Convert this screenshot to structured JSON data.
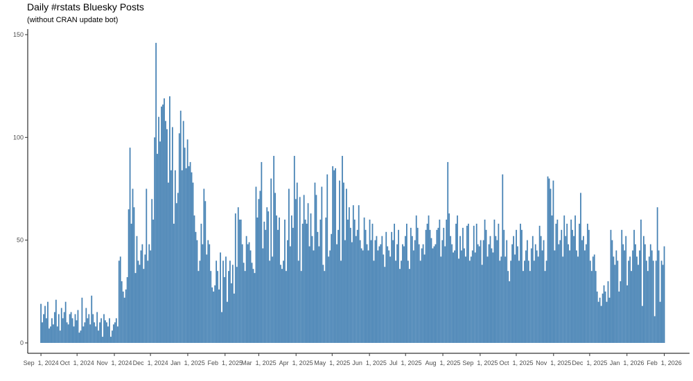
{
  "chart_data": {
    "type": "bar",
    "title": "Daily #rstats Bluesky Posts",
    "subtitle": "(without CRAN update bot)",
    "xlabel": "",
    "ylabel": "",
    "x_start": "2024-09-01",
    "x_end": "2026-02-01",
    "xlim": [
      "2024-08-21",
      "2026-02-22"
    ],
    "ylim": [
      0,
      155
    ],
    "y_ticks": [
      0,
      50,
      100,
      150
    ],
    "x_ticks": [
      {
        "date": "2024-09-01",
        "label": "Sep  1, 2024"
      },
      {
        "date": "2024-10-01",
        "label": "Oct  1, 2024"
      },
      {
        "date": "2024-11-01",
        "label": "Nov  1, 2024"
      },
      {
        "date": "2024-12-01",
        "label": "Dec  1, 2024"
      },
      {
        "date": "2025-01-01",
        "label": "Jan  1, 2025"
      },
      {
        "date": "2025-02-01",
        "label": "Feb  1, 2025"
      },
      {
        "date": "2025-03-01",
        "label": "Mar  1, 2025"
      },
      {
        "date": "2025-04-01",
        "label": "Apr  1, 2025"
      },
      {
        "date": "2025-05-01",
        "label": "May  1, 2025"
      },
      {
        "date": "2025-06-01",
        "label": "Jun  1, 2025"
      },
      {
        "date": "2025-07-01",
        "label": "Jul  1, 2025"
      },
      {
        "date": "2025-08-01",
        "label": "Aug  1, 2025"
      },
      {
        "date": "2025-09-01",
        "label": "Sep  1, 2025"
      },
      {
        "date": "2025-10-01",
        "label": "Oct  1, 2025"
      },
      {
        "date": "2025-11-01",
        "label": "Nov  1, 2025"
      },
      {
        "date": "2025-12-01",
        "label": "Dec  1, 2025"
      },
      {
        "date": "2026-01-01",
        "label": "Jan  1, 2026"
      },
      {
        "date": "2026-02-01",
        "label": "Feb  1, 2026"
      }
    ],
    "bar_color": "#4682b4",
    "grid": false,
    "legend": "none",
    "values": [
      19,
      10,
      14,
      18,
      12,
      20,
      7,
      8,
      12,
      9,
      15,
      21,
      8,
      14,
      6,
      17,
      12,
      15,
      20,
      10,
      9,
      14,
      15,
      12,
      8,
      14,
      11,
      16,
      5,
      6,
      22,
      8,
      10,
      17,
      12,
      14,
      9,
      23,
      14,
      10,
      8,
      15,
      6,
      10,
      12,
      3,
      14,
      11,
      10,
      8,
      12,
      3,
      6,
      9,
      10,
      12,
      8,
      40,
      42,
      30,
      25,
      22,
      26,
      32,
      65,
      95,
      58,
      75,
      66,
      34,
      52,
      40,
      38,
      45,
      48,
      36,
      43,
      75,
      40,
      48,
      45,
      70,
      60,
      100,
      146,
      92,
      110,
      98,
      115,
      116,
      119,
      108,
      104,
      78,
      120,
      84,
      105,
      58,
      84,
      68,
      73,
      102,
      113,
      84,
      108,
      95,
      85,
      99,
      86,
      88,
      83,
      78,
      62,
      54,
      50,
      35,
      40,
      58,
      48,
      75,
      69,
      43,
      50,
      48,
      35,
      27,
      25,
      28,
      40,
      35,
      26,
      44,
      15,
      40,
      32,
      42,
      20,
      35,
      40,
      29,
      38,
      24,
      63,
      37,
      66,
      60,
      60,
      48,
      39,
      35,
      52,
      48,
      49,
      45,
      39,
      36,
      34,
      76,
      61,
      70,
      74,
      88,
      46,
      59,
      55,
      66,
      64,
      40,
      80,
      42,
      91,
      73,
      62,
      55,
      61,
      38,
      36,
      40,
      60,
      35,
      50,
      75,
      47,
      62,
      56,
      91,
      70,
      78,
      40,
      71,
      35,
      58,
      72,
      60,
      58,
      68,
      47,
      63,
      52,
      45,
      78,
      72,
      54,
      47,
      60,
      76,
      38,
      35,
      61,
      82,
      42,
      45,
      53,
      86,
      84,
      85,
      48,
      55,
      79,
      40,
      91,
      78,
      50,
      75,
      60,
      66,
      56,
      49,
      67,
      60,
      52,
      55,
      67,
      50,
      46,
      45,
      61,
      55,
      48,
      45,
      60,
      50,
      58,
      40,
      50,
      52,
      45,
      47,
      48,
      52,
      43,
      37,
      54,
      47,
      45,
      42,
      54,
      50,
      58,
      40,
      48,
      55,
      36,
      40,
      48,
      47,
      52,
      58,
      40,
      36,
      56,
      52,
      45,
      50,
      62,
      56,
      48,
      40,
      46,
      48,
      43,
      55,
      58,
      62,
      55,
      51,
      46,
      47,
      48,
      55,
      56,
      60,
      42,
      50,
      56,
      47,
      60,
      88,
      63,
      52,
      48,
      44,
      45,
      58,
      62,
      41,
      52,
      45,
      56,
      46,
      42,
      57,
      58,
      40,
      42,
      45,
      57,
      44,
      58,
      48,
      47,
      50,
      38,
      50,
      60,
      55,
      42,
      48,
      52,
      46,
      44,
      60,
      52,
      50,
      58,
      40,
      42,
      82,
      55,
      42,
      50,
      35,
      30,
      40,
      48,
      52,
      43,
      55,
      47,
      40,
      58,
      55,
      35,
      40,
      45,
      50,
      40,
      35,
      46,
      52,
      40,
      48,
      45,
      42,
      57,
      52,
      45,
      50,
      35,
      40,
      81,
      80,
      75,
      62,
      79,
      45,
      58,
      60,
      48,
      50,
      55,
      42,
      62,
      52,
      58,
      48,
      45,
      60,
      55,
      52,
      62,
      45,
      42,
      58,
      73,
      50,
      52,
      45,
      48,
      58,
      55,
      40,
      35,
      42,
      43,
      35,
      25,
      20,
      22,
      18,
      24,
      28,
      25,
      20,
      30,
      22,
      55,
      50,
      42,
      38,
      45,
      40,
      25,
      30,
      55,
      48,
      45,
      52,
      28,
      40,
      42,
      35,
      45,
      55,
      48,
      42,
      38,
      45,
      60,
      18,
      52,
      48,
      40,
      35,
      42,
      48,
      45,
      40,
      13,
      40,
      66,
      45,
      20,
      40,
      38,
      47
    ]
  }
}
